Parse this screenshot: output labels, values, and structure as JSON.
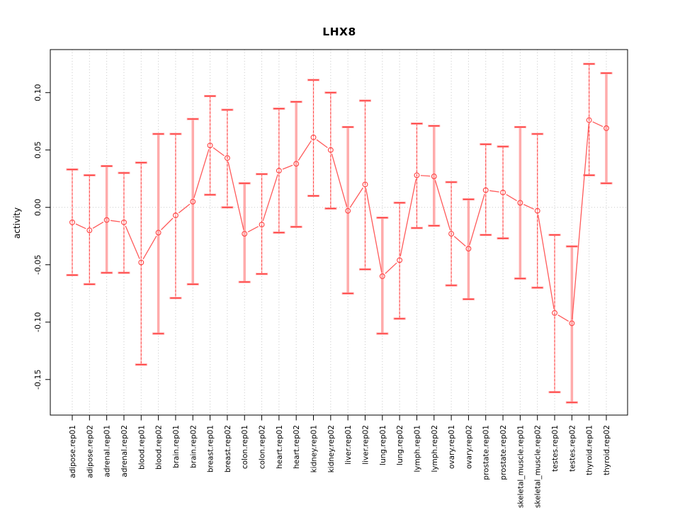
{
  "chart_data": {
    "type": "line",
    "title": "LHX8",
    "xlabel": "",
    "ylabel": "activity",
    "ylim": [
      -0.181,
      0.1375
    ],
    "yticks": [
      0.1,
      0.05,
      0.0,
      -0.05,
      -0.1,
      -0.15
    ],
    "ytick_labels": [
      "0.10",
      "0.05",
      "0.00",
      "-0.05",
      "-0.10",
      "-0.15"
    ],
    "grid": {
      "vertical_dotted_per_category": true,
      "horizontal_zero_line": true
    },
    "legend_position": "none",
    "marker": "open-circle",
    "categories": [
      "adipose.rep01",
      "adipose.rep02",
      "adrenal.rep01",
      "adrenal.rep02",
      "blood.rep01",
      "blood.rep02",
      "brain.rep01",
      "brain.rep02",
      "breast.rep01",
      "breast.rep02",
      "colon.rep01",
      "colon.rep02",
      "heart.rep01",
      "heart.rep02",
      "kidney.rep01",
      "kidney.rep02",
      "liver.rep01",
      "liver.rep02",
      "lung.rep01",
      "lung.rep02",
      "lymph.rep01",
      "lymph.rep02",
      "ovary.rep01",
      "ovary.rep02",
      "prostate.rep01",
      "prostate.rep02",
      "skeletal_muscle.rep01",
      "skeletal_muscle.rep02",
      "testes.rep01",
      "testes.rep02",
      "thyroid.rep01",
      "thyroid.rep02"
    ],
    "series": [
      {
        "name": "activity",
        "values": [
          -0.013,
          -0.02,
          -0.011,
          -0.013,
          -0.048,
          -0.022,
          -0.007,
          0.005,
          0.054,
          0.043,
          -0.023,
          -0.015,
          0.032,
          0.038,
          0.061,
          0.05,
          -0.003,
          0.02,
          -0.06,
          -0.046,
          0.028,
          0.027,
          -0.023,
          -0.036,
          0.015,
          0.013,
          0.004,
          -0.003,
          -0.092,
          -0.101,
          0.076,
          0.069
        ],
        "error_high": [
          0.033,
          0.028,
          0.036,
          0.03,
          0.039,
          0.064,
          0.064,
          0.077,
          0.097,
          0.085,
          0.021,
          0.029,
          0.086,
          0.092,
          0.111,
          0.1,
          0.07,
          0.093,
          -0.009,
          0.004,
          0.073,
          0.071,
          0.022,
          0.007,
          0.055,
          0.053,
          0.07,
          0.064,
          -0.024,
          -0.034,
          0.125,
          0.117
        ],
        "error_low": [
          -0.059,
          -0.067,
          -0.057,
          -0.057,
          -0.137,
          -0.11,
          -0.079,
          -0.067,
          0.011,
          0.0,
          -0.065,
          -0.058,
          -0.022,
          -0.017,
          0.01,
          -0.001,
          -0.075,
          -0.054,
          -0.11,
          -0.097,
          -0.018,
          -0.016,
          -0.068,
          -0.08,
          -0.024,
          -0.027,
          -0.062,
          -0.07,
          -0.161,
          -0.17,
          0.028,
          0.021
        ]
      }
    ],
    "emphasized_error_bars": [
      3,
      6,
      8,
      11,
      14,
      17,
      19,
      22,
      24,
      27,
      30,
      32
    ],
    "colors": {
      "series": "#ff4444",
      "series_line": "#ff5a5a",
      "error_bar_pale": "#ffabab",
      "error_bar_cap": "#ff3b3b",
      "error_bar_cap_pale": "#ff9e9e",
      "grid": "#c9c9c9",
      "box": "#000000"
    }
  }
}
